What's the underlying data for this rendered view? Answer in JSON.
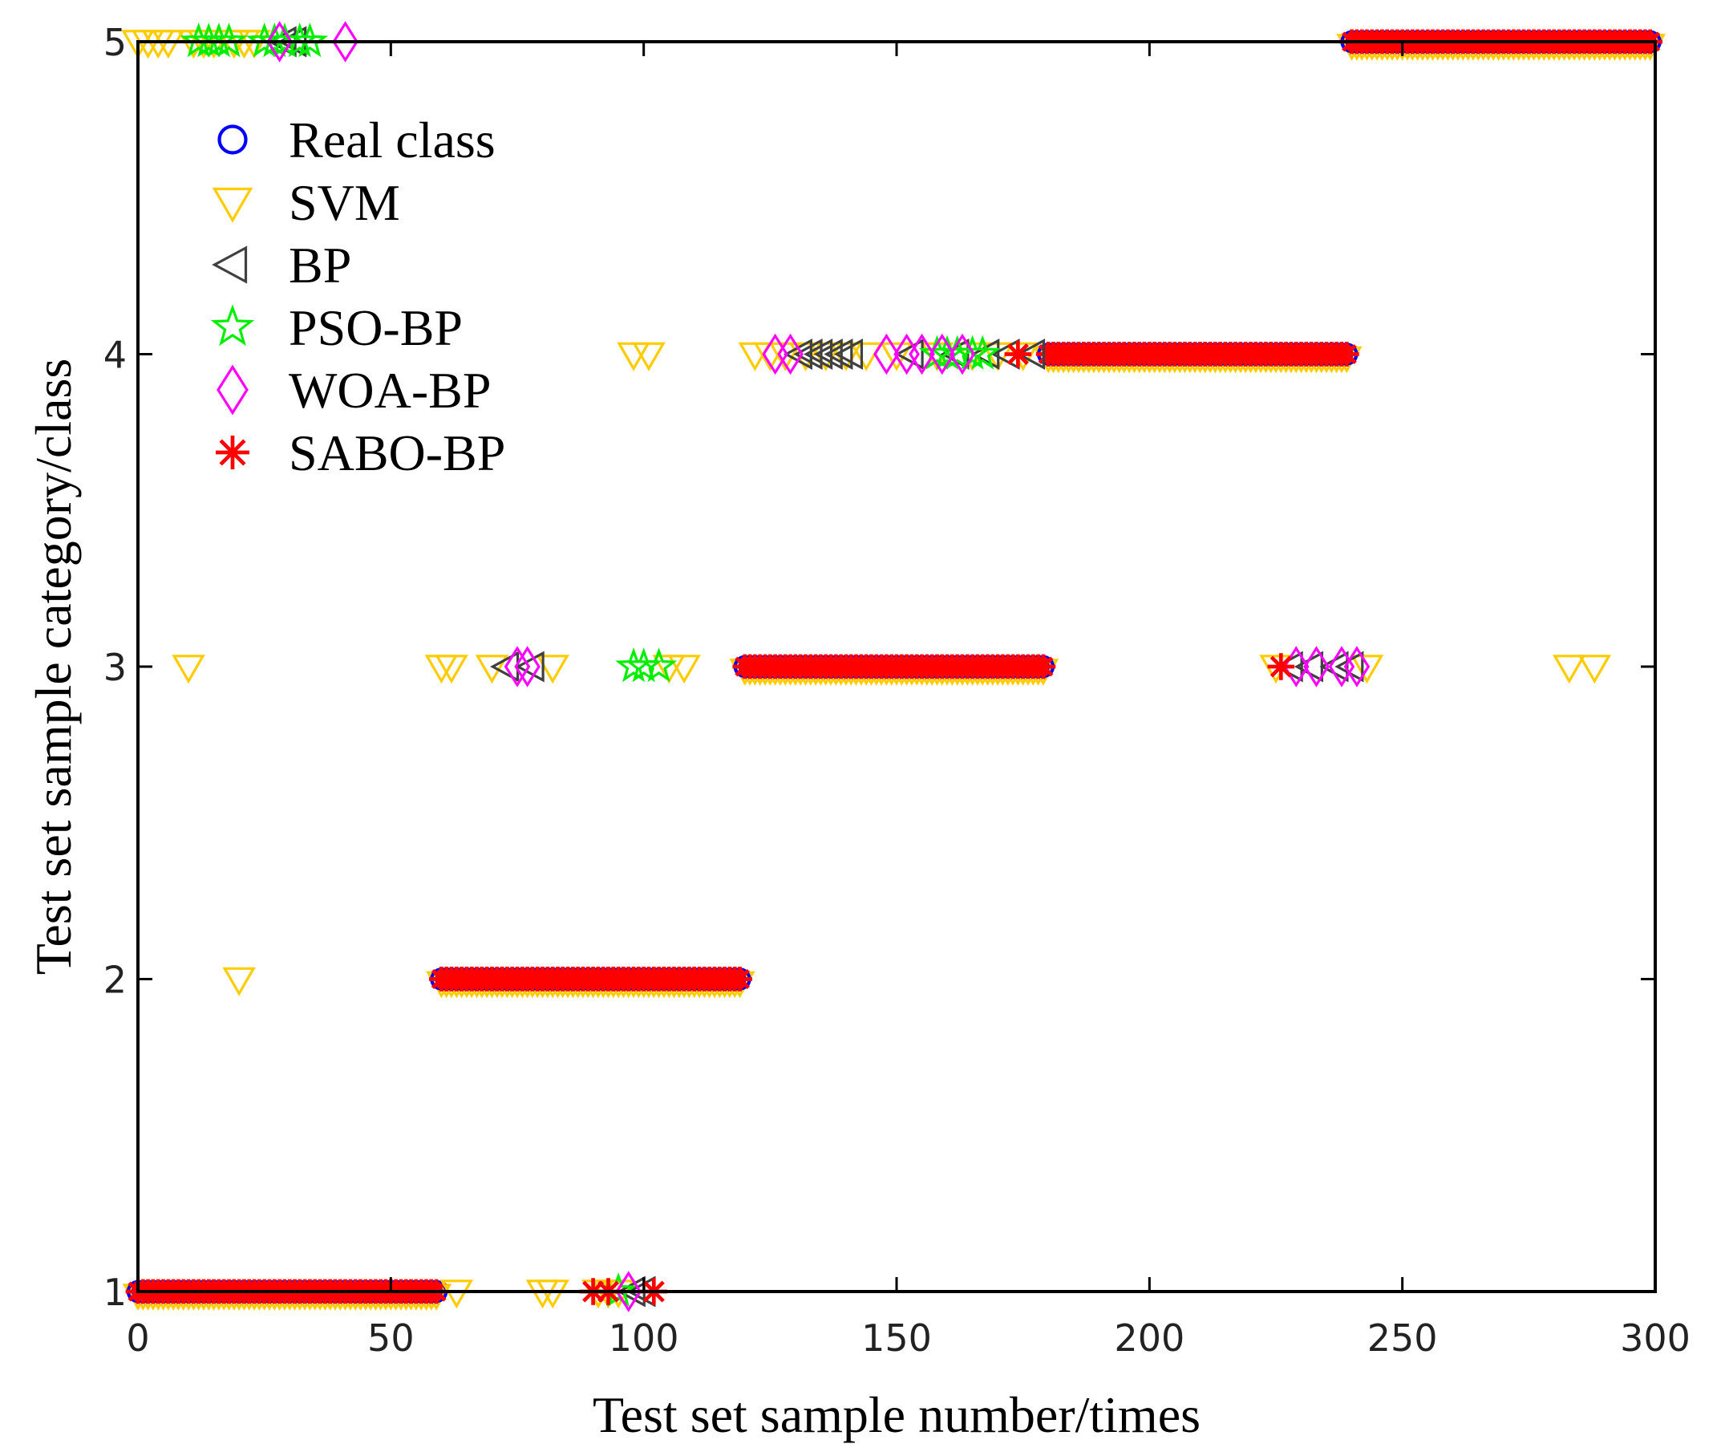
{
  "chart_data": {
    "type": "scatter",
    "title": "",
    "xlabel": "Test set sample number/times",
    "ylabel": "Test set sample category/class",
    "xlim": [
      0,
      300
    ],
    "ylim": [
      1,
      5
    ],
    "xticks": [
      "0",
      "50",
      "100",
      "150",
      "200",
      "250",
      "300"
    ],
    "yticks": [
      "1",
      "2",
      "3",
      "4",
      "5"
    ],
    "grid": false,
    "legend_position": "top-left",
    "real_class_segments": [
      {
        "from": 1,
        "to": 60,
        "class": 1
      },
      {
        "from": 61,
        "to": 120,
        "class": 2
      },
      {
        "from": 121,
        "to": 180,
        "class": 3
      },
      {
        "from": 181,
        "to": 240,
        "class": 4
      },
      {
        "from": 241,
        "to": 300,
        "class": 5
      }
    ],
    "series": [
      {
        "name": "Real class",
        "marker": "circle",
        "color": "#0000ff",
        "points": []
      },
      {
        "name": "SVM",
        "marker": "triangle-down",
        "color": "#ffcc00",
        "points": [
          [
            0,
            5
          ],
          [
            2,
            5
          ],
          [
            4,
            5
          ],
          [
            6,
            5
          ],
          [
            11,
            5
          ],
          [
            13,
            5
          ],
          [
            15,
            5
          ],
          [
            19,
            5
          ],
          [
            21,
            5
          ],
          [
            23,
            5
          ],
          [
            10,
            3
          ],
          [
            20,
            2
          ],
          [
            60,
            3
          ],
          [
            63,
            1
          ],
          [
            62,
            3
          ],
          [
            70,
            3
          ],
          [
            80,
            1
          ],
          [
            82,
            1
          ],
          [
            82,
            3
          ],
          [
            91,
            1
          ],
          [
            93,
            1
          ],
          [
            95,
            1
          ],
          [
            98,
            4
          ],
          [
            101,
            4
          ],
          [
            108,
            3
          ],
          [
            105,
            3
          ],
          [
            122,
            4
          ],
          [
            125,
            4
          ],
          [
            128,
            4
          ],
          [
            132,
            4
          ],
          [
            136,
            4
          ],
          [
            140,
            4
          ],
          [
            144,
            4
          ],
          [
            150,
            4
          ],
          [
            158,
            4
          ],
          [
            165,
            4
          ],
          [
            170,
            4
          ],
          [
            175,
            4
          ],
          [
            225,
            3
          ],
          [
            243,
            3
          ],
          [
            283,
            3
          ],
          [
            288,
            3
          ]
        ]
      },
      {
        "name": "BP",
        "marker": "triangle-left",
        "color": "#404040",
        "points": [
          [
            29,
            5
          ],
          [
            31,
            5
          ],
          [
            73,
            3
          ],
          [
            78,
            3
          ],
          [
            98,
            1
          ],
          [
            100,
            1
          ],
          [
            131,
            4
          ],
          [
            133,
            4
          ],
          [
            135,
            4
          ],
          [
            137,
            4
          ],
          [
            139,
            4
          ],
          [
            141,
            4
          ],
          [
            153,
            4
          ],
          [
            162,
            4
          ],
          [
            168,
            4
          ],
          [
            172,
            4
          ],
          [
            177,
            4
          ],
          [
            228,
            3
          ],
          [
            232,
            3
          ],
          [
            237,
            3
          ],
          [
            240,
            3
          ]
        ]
      },
      {
        "name": "PSO-BP",
        "marker": "star",
        "color": "#00ee00",
        "points": [
          [
            12,
            5
          ],
          [
            14,
            5
          ],
          [
            16,
            5
          ],
          [
            18,
            5
          ],
          [
            25,
            5
          ],
          [
            27,
            5
          ],
          [
            29,
            5
          ],
          [
            32,
            5
          ],
          [
            34,
            5
          ],
          [
            98,
            3
          ],
          [
            100,
            3
          ],
          [
            103,
            3
          ],
          [
            95,
            1
          ],
          [
            158,
            4
          ],
          [
            160,
            4
          ],
          [
            162,
            4
          ],
          [
            165,
            4
          ],
          [
            167,
            4
          ]
        ]
      },
      {
        "name": "WOA-BP",
        "marker": "diamond",
        "color": "#ff00ff",
        "points": [
          [
            28,
            5
          ],
          [
            41,
            5
          ],
          [
            75,
            3
          ],
          [
            77,
            3
          ],
          [
            97,
            1
          ],
          [
            126,
            4
          ],
          [
            129,
            4
          ],
          [
            148,
            4
          ],
          [
            152,
            4
          ],
          [
            155,
            4
          ],
          [
            159,
            4
          ],
          [
            163,
            4
          ],
          [
            229,
            3
          ],
          [
            233,
            3
          ],
          [
            238,
            3
          ],
          [
            241,
            3
          ]
        ]
      },
      {
        "name": "SABO-BP",
        "marker": "asterisk",
        "color": "#ff0000",
        "points": [
          [
            90,
            1
          ],
          [
            93,
            1
          ],
          [
            102,
            1
          ],
          [
            174,
            4
          ],
          [
            226,
            3
          ]
        ]
      }
    ]
  }
}
